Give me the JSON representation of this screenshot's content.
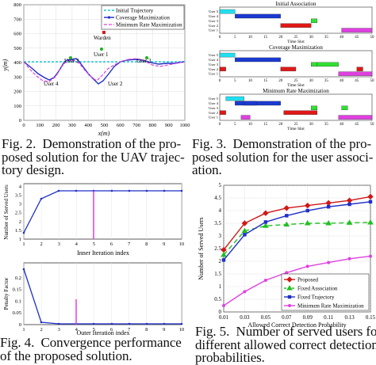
{
  "fig2": {
    "caption": "Fig. 2.  Demonstration of the pro-\nposed solution for the UAV trajec-\ntory design.",
    "legend": [
      "Initial Trajectory",
      "Coverage Maximization",
      "Minimum Rate Maximization"
    ],
    "labels": {
      "warden": "Warden",
      "user1": "User 1",
      "user2": "User 2",
      "user3": "User 3",
      "user4": "User 4"
    },
    "xlabel": "x(m)",
    "ylabel": "y(m)",
    "xticks": [
      "0",
      "100",
      "200",
      "300",
      "400",
      "500",
      "600",
      "700",
      "800",
      "900",
      "1000"
    ],
    "yticks": [
      "0",
      "100",
      "200",
      "300",
      "400",
      "500",
      "600",
      "700",
      "800"
    ],
    "colors": {
      "initial": "#19c8d8",
      "coverage": "#1f2fc8",
      "minrate": "#e040e0",
      "warden": "#d02020",
      "user": "#20b020"
    }
  },
  "fig3": {
    "caption": "Fig. 3.  Demonstration of the pro-\nposed solution for the user associ-\nation.",
    "panels": [
      "Initial Association",
      "Coverage Maximization",
      "Minimum Rate Maximization"
    ],
    "xlabel": "Time Slot",
    "xticks": [
      "0",
      "5",
      "10",
      "15",
      "20",
      "25",
      "30",
      "35",
      "40",
      "45",
      "50"
    ],
    "users": [
      "User 5",
      "User 4",
      "User 3",
      "User 2",
      "User 1"
    ],
    "colors": [
      "#20e0f0",
      "#1a3ad0",
      "#30e030",
      "#e01818",
      "#e040e0"
    ]
  },
  "fig4": {
    "caption": "Fig. 4.  Convergence performance\nof the proposed solution.",
    "top": {
      "ylabel": "Number of Served Users",
      "xlabel": "Inner Iteration index",
      "yticks": [
        "1",
        "1.5",
        "2",
        "2.5",
        "3",
        "3.5",
        "4"
      ],
      "xticks": [
        "1",
        "2",
        "3",
        "4",
        "5",
        "6",
        "7",
        "8",
        "9",
        "10"
      ]
    },
    "bottom": {
      "ylabel": "Penalty Factor",
      "xlabel": "Outer Iteration index",
      "yticks": [
        "0",
        "0.05",
        "0.1",
        "0.15",
        "0.2"
      ],
      "xticks": [
        "1",
        "2",
        "3",
        "4",
        "5",
        "6",
        "7",
        "8",
        "9",
        "10"
      ]
    },
    "colors": {
      "line": "#1f2fc8",
      "marker": "#e040e0"
    }
  },
  "fig5": {
    "caption": "Fig. 5.  Number of served users for\ndifferent allowed correct detection\nprobabilities.",
    "chart_data": {
      "type": "line",
      "x": [
        0.01,
        0.03,
        0.05,
        0.07,
        0.09,
        0.11,
        0.13,
        0.15
      ],
      "xticks": [
        "0.01",
        "0.03",
        "0.05",
        "0.07",
        "0.09",
        "0.11",
        "0.13",
        "0.15"
      ],
      "yticks": [
        "0",
        "0.5",
        "1",
        "1.5",
        "2",
        "2.5",
        "3",
        "3.5",
        "4",
        "4.5",
        "5"
      ],
      "ylim": [
        0,
        5
      ],
      "xlabel": "Allowed Correct Detection Probability",
      "ylabel": "Number of Served Users",
      "grid": true,
      "legend_position": "bottom-right",
      "series": [
        {
          "name": "Proposed",
          "color": "#d01818",
          "marker": "diamond",
          "dash": "",
          "values": [
            2.45,
            3.5,
            3.9,
            4.1,
            4.2,
            4.3,
            4.4,
            4.55
          ]
        },
        {
          "name": "Fixed Association",
          "color": "#20c020",
          "marker": "triangle",
          "dash": "6,4",
          "values": [
            2.25,
            3.2,
            3.4,
            3.45,
            3.5,
            3.5,
            3.52,
            3.53
          ]
        },
        {
          "name": "Fixed Trajectory",
          "color": "#1f2fc8",
          "marker": "square",
          "dash": "",
          "values": [
            2.05,
            3.05,
            3.55,
            3.8,
            4.0,
            4.15,
            4.25,
            4.35
          ]
        },
        {
          "name": "Minimum Rate Maximization",
          "color": "#e040e0",
          "marker": "circle",
          "dash": "",
          "values": [
            0.25,
            0.8,
            1.25,
            1.55,
            1.8,
            1.95,
            2.1,
            2.2
          ]
        }
      ]
    }
  }
}
